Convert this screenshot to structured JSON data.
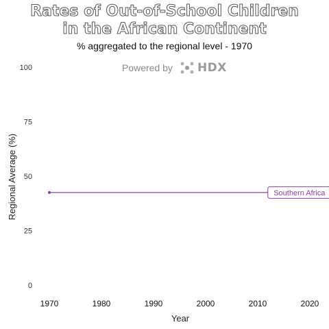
{
  "chart_data": {
    "type": "line",
    "title_line1": "Rates of Out-of-School Children",
    "title_line2": "in the African Continent",
    "subtitle": "% aggregated to the regional level - 1970",
    "xlabel": "Year",
    "ylabel": "Regional Average (%)",
    "xlim": [
      1970,
      2020
    ],
    "ylim": [
      0,
      100
    ],
    "x_ticks": [
      "1970",
      "1980",
      "1990",
      "2000",
      "2010",
      "2020"
    ],
    "y_ticks": [
      "0",
      "25",
      "50",
      "75",
      "100"
    ],
    "grid": false,
    "series": [
      {
        "name": "Southern Africa",
        "color": "#8a3ea8",
        "points": [
          {
            "x": 1970,
            "y": 42.5
          },
          {
            "x": 2018,
            "y": 42.5
          }
        ]
      }
    ]
  },
  "branding": {
    "powered_by": "Powered by",
    "logo_text": "HDX",
    "logo_icon": "hdx-dots-icon"
  }
}
